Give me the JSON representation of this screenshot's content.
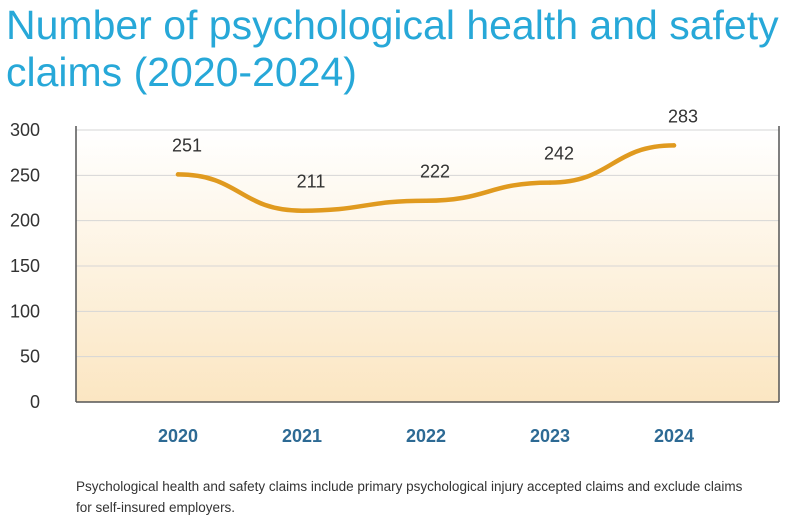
{
  "title": "Number of psychological health and safety claims (2020-2024)",
  "footnote": "Psychological health and safety claims include primary psychological injury accepted claims and exclude claims for self-insured employers.",
  "colors": {
    "title": "#27a8d8",
    "line": "#e09a1f",
    "category_labels": "#2d6a94",
    "area_top": "#ffffff",
    "area_bottom": "#fbe6c2"
  },
  "chart_data": {
    "type": "line",
    "title": "Number of psychological health and safety claims (2020-2024)",
    "xlabel": "",
    "ylabel": "",
    "categories": [
      "2020",
      "2021",
      "2022",
      "2023",
      "2024"
    ],
    "series": [
      {
        "values": [
          251,
          211,
          222,
          242,
          283
        ]
      }
    ],
    "data_labels": [
      "251",
      "211",
      "222",
      "242",
      "283"
    ],
    "ylim": [
      0,
      300
    ],
    "yticks": [
      0,
      50,
      100,
      150,
      200,
      250,
      300
    ],
    "grid": true,
    "legend": "none"
  }
}
